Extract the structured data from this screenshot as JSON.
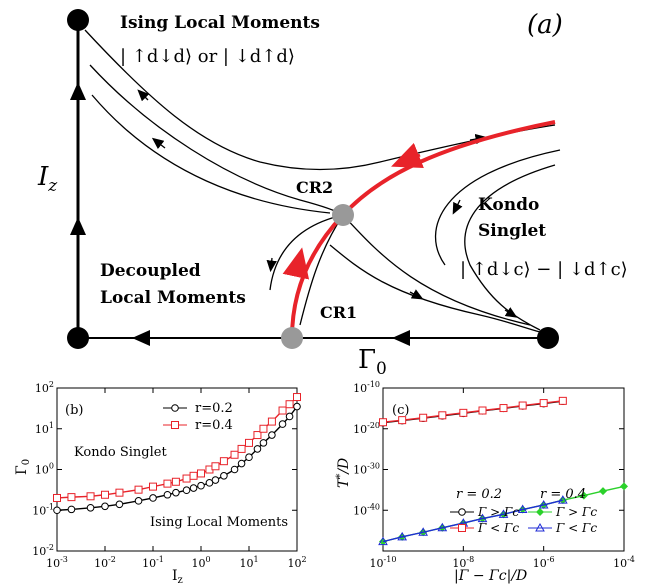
{
  "phase_diagram": {
    "panel_label": "(a)",
    "y_axis_label": "I",
    "y_axis_sub": "z",
    "x_axis_label": "Γ",
    "x_axis_sub": "0",
    "regions": {
      "ising_title": "Ising Local Moments",
      "ising_state": "| ↑d↓d⟩ or | ↓d↑d⟩",
      "kondo_title_1": "Kondo",
      "kondo_title_2": "Singlet",
      "kondo_state": "| ↑d↓c⟩ − | ↓d↑c⟩",
      "decoupled_1": "Decoupled",
      "decoupled_2": "Local Moments"
    },
    "fixed_points": {
      "cr1": "CR1",
      "cr2": "CR2"
    },
    "colors": {
      "critical_line": "#e8232a",
      "fixed_point": "#999999",
      "stable_point": "#000000"
    }
  },
  "panel_b": {
    "label": "(b)",
    "ylabel": "Γ0",
    "xlabel": "I z",
    "region_top": "Kondo Singlet",
    "region_bottom": "Ising Local Moments",
    "x_ticks": [
      "10-3",
      "10-2",
      "10-1",
      "100",
      "101",
      "102"
    ],
    "y_ticks": [
      "102",
      "101",
      "100",
      "10-1",
      "10-2"
    ],
    "legend": [
      "r=0.2",
      "r=0.4"
    ]
  },
  "panel_c": {
    "label": "(c)",
    "ylabel": "T*/D",
    "xlabel": "|Γ − Γc|/D",
    "x_ticks": [
      "10-10",
      "10-8",
      "10-6",
      "10-4"
    ],
    "y_ticks": [
      "10-10",
      "10-20",
      "10-30",
      "10-40"
    ],
    "legend_header_1": "r = 0.2",
    "legend_header_2": "r = 0.4",
    "legend": [
      "Γ > Γc",
      "Γ < Γc",
      "Γ > Γc",
      "Γ < Γc"
    ]
  },
  "chart_data": [
    {
      "type": "line",
      "xlabel": "Iz",
      "ylabel": "Γ0",
      "xscale": "log",
      "yscale": "log",
      "xlim": [
        0.001,
        100
      ],
      "ylim": [
        0.01,
        100
      ],
      "series": [
        {
          "name": "r=0.2",
          "color": "#000000",
          "marker": "circle",
          "x": [
            0.001,
            0.002,
            0.005,
            0.01,
            0.02,
            0.05,
            0.1,
            0.2,
            0.3,
            0.5,
            0.7,
            1,
            1.5,
            2,
            3,
            5,
            7,
            10,
            15,
            20,
            30,
            50,
            70,
            100
          ],
          "y": [
            0.1,
            0.105,
            0.115,
            0.125,
            0.14,
            0.17,
            0.2,
            0.24,
            0.27,
            0.31,
            0.35,
            0.4,
            0.47,
            0.55,
            0.7,
            1.0,
            1.4,
            2.0,
            3.2,
            4.5,
            7,
            13,
            20,
            35
          ]
        },
        {
          "name": "r=0.4",
          "color": "#e8232a",
          "marker": "square",
          "x": [
            0.001,
            0.002,
            0.005,
            0.01,
            0.02,
            0.05,
            0.1,
            0.2,
            0.3,
            0.5,
            0.7,
            1,
            1.5,
            2,
            3,
            5,
            7,
            10,
            15,
            20,
            30,
            50,
            70,
            100
          ],
          "y": [
            0.2,
            0.21,
            0.22,
            0.24,
            0.27,
            0.32,
            0.38,
            0.45,
            0.5,
            0.6,
            0.7,
            0.8,
            1.0,
            1.2,
            1.6,
            2.3,
            3.2,
            4.5,
            7,
            10,
            15,
            28,
            40,
            60
          ]
        }
      ]
    },
    {
      "type": "line",
      "xlabel": "|Γ − Γc|/D",
      "ylabel": "T*/D",
      "xscale": "log",
      "yscale": "log",
      "xlim": [
        1e-10,
        0.0001
      ],
      "ylim": [
        1e-50,
        1e-10
      ],
      "series": [
        {
          "name": "Γ > Γc",
          "color": "#000000",
          "marker": "circle",
          "x": [
            1e-10,
            3e-10,
            1e-09,
            3e-09,
            1e-08,
            3e-08,
            1e-07,
            3e-07,
            1e-06,
            3e-06
          ],
          "y": [
            3e-19,
            1e-18,
            4e-18,
            1.5e-17,
            6e-17,
            2.5e-16,
            1e-15,
            4e-15,
            1.5e-14,
            6e-14
          ]
        },
        {
          "name": "Γ < Γc",
          "color": "#e8232a",
          "marker": "square",
          "x": [
            1e-10,
            3e-10,
            1e-09,
            3e-09,
            1e-08,
            3e-08,
            1e-07,
            3e-07,
            1e-06,
            3e-06
          ],
          "y": [
            4e-19,
            1.3e-18,
            5e-18,
            2e-17,
            8e-17,
            3e-16,
            1.2e-15,
            5e-15,
            2e-14,
            7e-14
          ]
        },
        {
          "name": "Γ > Γc",
          "color": "#2bd12b",
          "marker": "diamond",
          "x": [
            1e-10,
            3e-10,
            1e-09,
            3e-09,
            1e-08,
            3e-08,
            1e-07,
            3e-07,
            1e-06,
            3e-06,
            1e-05,
            3e-05,
            0.0001
          ],
          "y": [
            2e-48,
            3e-47,
            4e-46,
            5e-45,
            7e-44,
            9e-43,
            1e-41,
            1.5e-40,
            2e-39,
            3e-38,
            4e-37,
            5e-36,
            7e-35
          ]
        },
        {
          "name": "Γ < Γc",
          "color": "#1f2bd6",
          "marker": "triangle",
          "x": [
            1e-10,
            3e-10,
            1e-09,
            3e-09,
            1e-08,
            3e-08,
            1e-07,
            3e-07,
            1e-06,
            3e-06
          ],
          "y": [
            2e-48,
            3e-47,
            4e-46,
            5e-45,
            7e-44,
            9e-43,
            1e-41,
            1.5e-40,
            2e-39,
            3e-38
          ]
        }
      ]
    }
  ]
}
